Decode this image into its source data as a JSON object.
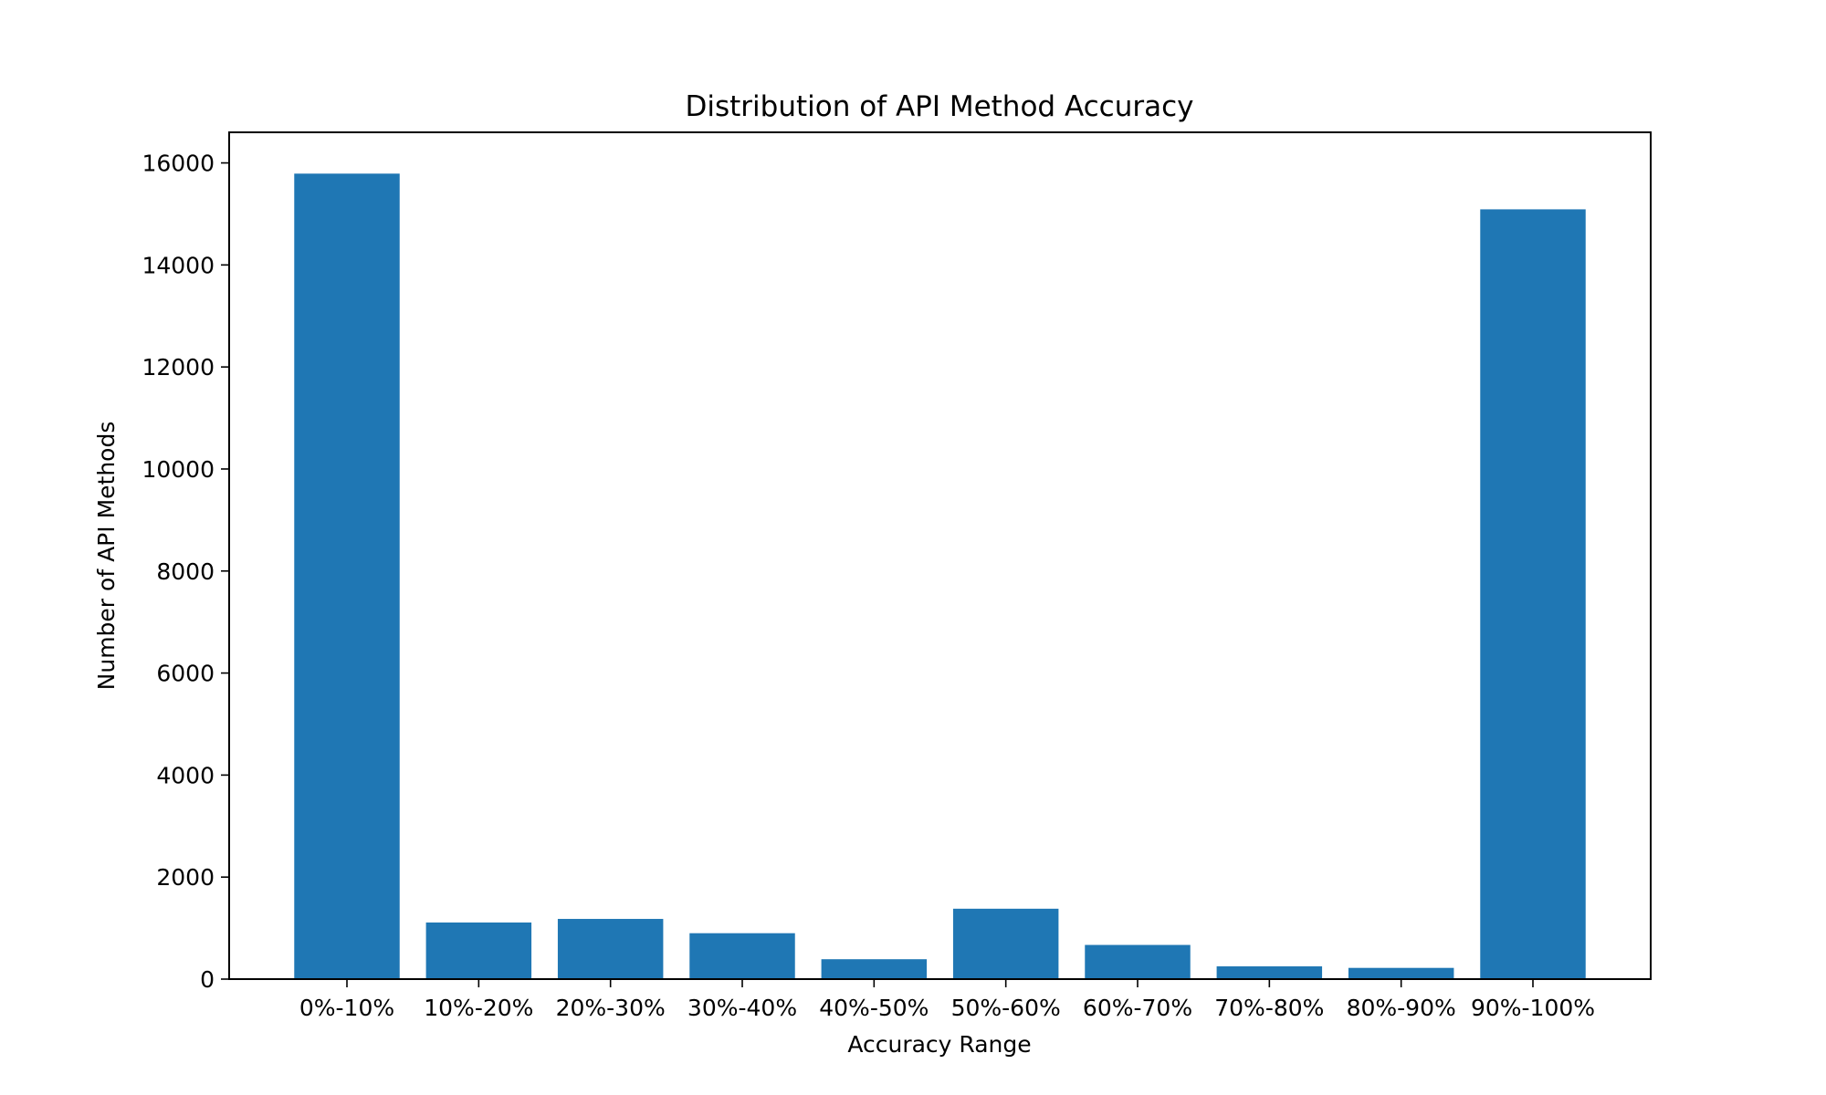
{
  "chart_data": {
    "type": "bar",
    "title": "Distribution of API Method Accuracy",
    "xlabel": "Accuracy Range",
    "ylabel": "Number of API Methods",
    "categories": [
      "0%-10%",
      "10%-20%",
      "20%-30%",
      "30%-40%",
      "40%-50%",
      "50%-60%",
      "60%-70%",
      "70%-80%",
      "80%-90%",
      "90%-100%"
    ],
    "values": [
      15790,
      1110,
      1180,
      900,
      390,
      1380,
      670,
      250,
      220,
      15090
    ],
    "ylim": [
      0,
      16600
    ],
    "yticks": [
      0,
      2000,
      4000,
      6000,
      8000,
      10000,
      12000,
      14000,
      16000
    ],
    "grid": false,
    "legend": "none",
    "bar_color": "#1f77b4"
  }
}
